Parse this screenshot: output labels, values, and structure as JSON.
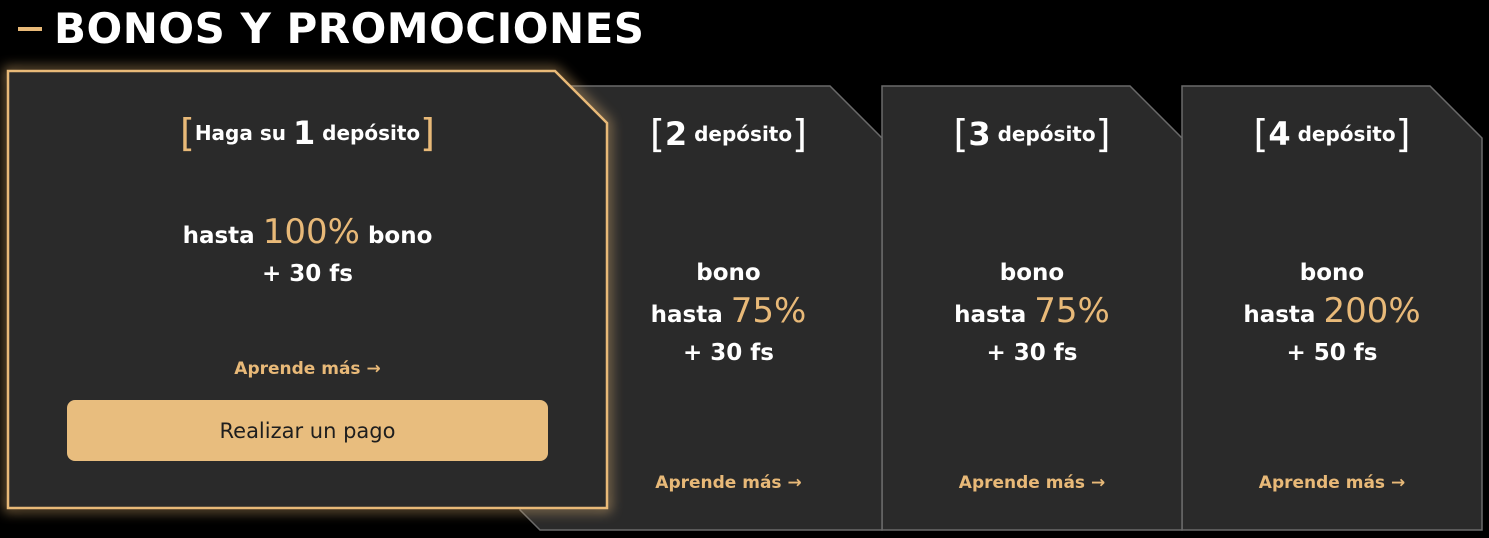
{
  "section": {
    "title": "BONOS Y PROMOCIONES"
  },
  "colors": {
    "accent": "#e8b978",
    "card_bg": "#2a2a2a",
    "background": "#000000"
  },
  "cards": [
    {
      "prefix": "Haga su",
      "number": "1",
      "label": "depósito",
      "line1_pre": "hasta",
      "percent": "100%",
      "line1_post": "bono",
      "extra": "+ 30 fs",
      "link": "Aprende más →",
      "button": "Realizar un pago"
    },
    {
      "number": "2",
      "label": "depósito",
      "line0": "bono",
      "line1_pre": "hasta",
      "percent": "75%",
      "extra": "+ 30 fs",
      "link": "Aprende más →"
    },
    {
      "number": "3",
      "label": "depósito",
      "line0": "bono",
      "line1_pre": "hasta",
      "percent": "75%",
      "extra": "+ 30 fs",
      "link": "Aprende más →"
    },
    {
      "number": "4",
      "label": "depósito",
      "line0": "bono",
      "line1_pre": "hasta",
      "percent": "200%",
      "extra": "+ 50 fs",
      "link": "Aprende más →"
    }
  ]
}
